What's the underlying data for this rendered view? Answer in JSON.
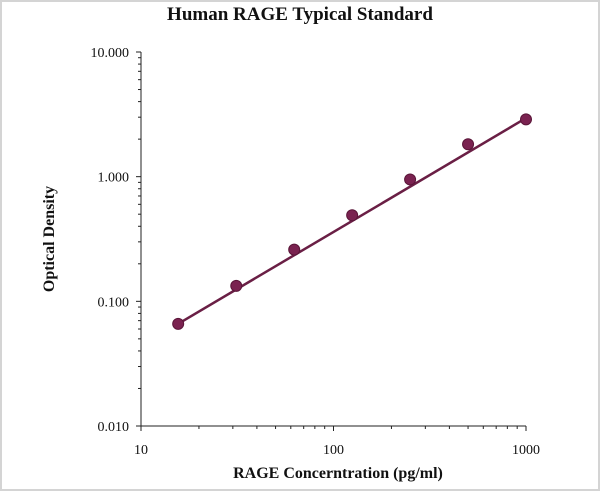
{
  "chart_data": {
    "type": "scatter",
    "title": "Human RAGE Typical Standard",
    "xlabel": "RAGE Concerntration (pg/ml)",
    "ylabel": "Optical Density",
    "x_scale": "log",
    "y_scale": "log",
    "xlim": [
      10,
      1000
    ],
    "ylim": [
      0.01,
      10
    ],
    "x_ticks": [
      "10",
      "100",
      "1000"
    ],
    "y_ticks": [
      "0.010",
      "0.100",
      "1.000",
      "10.000"
    ],
    "grid": false,
    "colors": {
      "series": "#7a2250",
      "fit_line": "#6a1f45"
    },
    "series": [
      {
        "x": [
          15.6,
          31.25,
          62.5,
          125,
          250,
          500,
          1000
        ],
        "y": [
          0.066,
          0.133,
          0.26,
          0.49,
          0.95,
          1.82,
          2.88
        ]
      }
    ],
    "fit_line": {
      "x": [
        15.6,
        1000
      ],
      "y": [
        0.066,
        2.95
      ]
    }
  }
}
